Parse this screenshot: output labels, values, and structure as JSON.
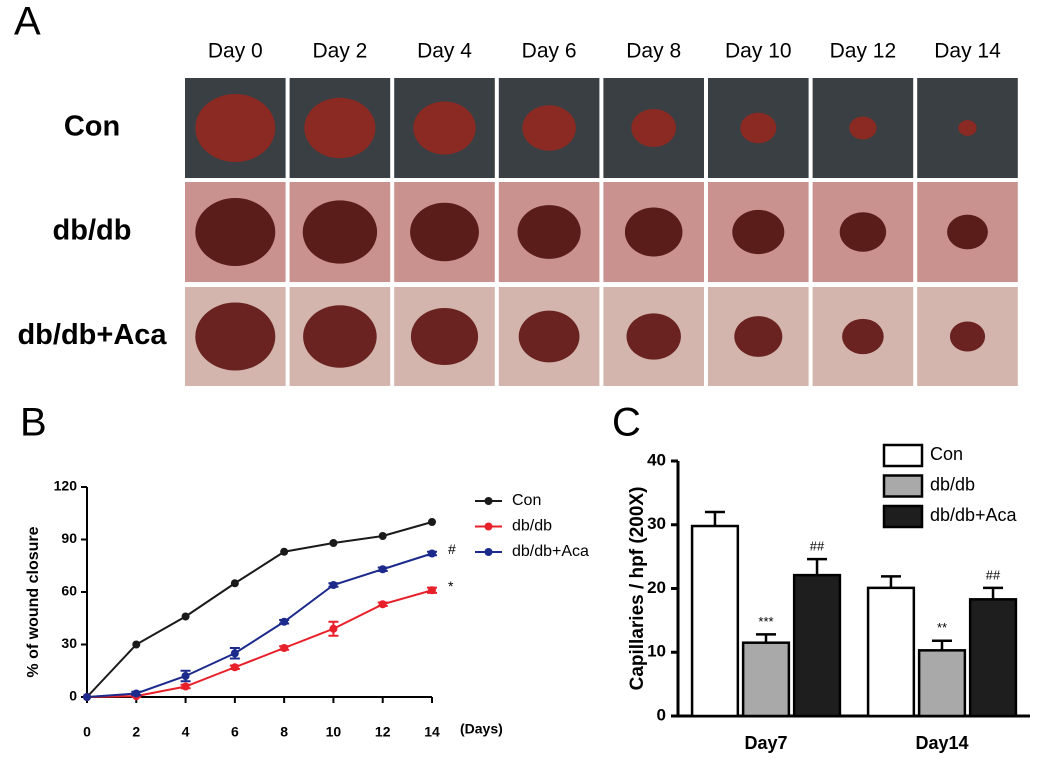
{
  "panel_a": {
    "label": "A",
    "columns": [
      "Day 0",
      "Day 2",
      "Day 4",
      "Day 6",
      "Day 8",
      "Day 10",
      "Day 12",
      "Day 14"
    ],
    "rows": [
      "Con",
      "db/db",
      "db/db+Aca"
    ]
  },
  "chart_data": [
    {
      "type": "line",
      "panel_label": "B",
      "x_label": "(Days)",
      "y_label": "% of wound closure",
      "x": [
        0,
        2,
        4,
        6,
        8,
        10,
        12,
        14
      ],
      "xlim": [
        0,
        14
      ],
      "xticks": [
        0,
        2,
        4,
        6,
        8,
        10,
        12,
        14
      ],
      "ylim": [
        0,
        120
      ],
      "yticks": [
        0,
        30,
        60,
        90,
        120
      ],
      "series": [
        {
          "name": "Con",
          "color": "#1a1a1a",
          "values": [
            0,
            30,
            46,
            65,
            83,
            88,
            92,
            100
          ]
        },
        {
          "name": "db/db",
          "color": "#e8202a",
          "values": [
            0,
            0.5,
            6,
            17,
            28,
            39,
            53,
            61
          ],
          "errors": [
            0,
            0.5,
            1,
            1,
            1,
            4,
            1,
            1.5
          ],
          "end_label": "*"
        },
        {
          "name": "db/db+Aca",
          "color": "#1c2a8c",
          "values": [
            0,
            2,
            12,
            25,
            43,
            64,
            73,
            82
          ],
          "errors": [
            0,
            1,
            3,
            3,
            1,
            1,
            1,
            1
          ],
          "end_label": "#"
        }
      ]
    },
    {
      "type": "bar",
      "panel_label": "C",
      "y_label": "Capillaries / hpf (200X)",
      "categories": [
        "Day7",
        "Day14"
      ],
      "ylim": [
        0,
        40
      ],
      "yticks": [
        0,
        10,
        20,
        30,
        40
      ],
      "series": [
        {
          "name": "Con",
          "color": "#ffffff",
          "values": [
            29.8,
            20.1
          ],
          "errors": [
            2.2,
            1.8
          ]
        },
        {
          "name": "db/db",
          "color": "#a9a9a9",
          "values": [
            11.5,
            10.3
          ],
          "errors": [
            1.3,
            1.5
          ],
          "labels": [
            "***",
            "**"
          ]
        },
        {
          "name": "db/db+Aca",
          "color": "#1e1e1e",
          "values": [
            22.1,
            18.3
          ],
          "errors": [
            2.5,
            1.8
          ],
          "labels": [
            "##",
            "##"
          ]
        }
      ]
    }
  ]
}
